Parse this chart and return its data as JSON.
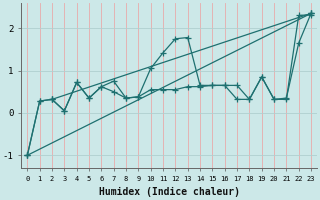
{
  "xlabel": "Humidex (Indice chaleur)",
  "ylabel": "",
  "bg_color": "#cce8e8",
  "line_color": "#1e7070",
  "hgrid_color": "#b0d0d0",
  "vgrid_color": "#e8aaaa",
  "xlim": [
    -0.5,
    23.5
  ],
  "ylim": [
    -1.3,
    2.6
  ],
  "yticks": [
    -1,
    0,
    1,
    2
  ],
  "lines": [
    {
      "x": [
        0,
        1,
        2,
        3,
        4,
        5,
        6,
        7,
        8,
        9,
        10,
        11,
        12,
        13,
        14,
        15,
        16,
        17,
        18,
        19,
        20,
        21,
        22,
        23
      ],
      "y": [
        -1.0,
        0.28,
        0.32,
        0.05,
        0.72,
        0.35,
        0.62,
        0.75,
        0.35,
        0.38,
        1.05,
        1.42,
        1.75,
        1.78,
        0.65,
        0.65,
        0.65,
        0.32,
        0.32,
        0.85,
        0.32,
        0.32,
        2.3,
        2.32
      ]
    },
    {
      "x": [
        0,
        1,
        2,
        3,
        4,
        5,
        6,
        7,
        8,
        9,
        10,
        11,
        12,
        13,
        14,
        15,
        16,
        17,
        18,
        19,
        20,
        21,
        22,
        23
      ],
      "y": [
        -1.0,
        0.28,
        0.32,
        0.05,
        0.72,
        0.35,
        0.62,
        0.5,
        0.35,
        0.38,
        0.55,
        0.55,
        0.55,
        0.62,
        0.62,
        0.65,
        0.65,
        0.65,
        0.32,
        0.85,
        0.32,
        0.35,
        1.65,
        2.35
      ]
    },
    {
      "x": [
        0,
        23
      ],
      "y": [
        -1.0,
        2.35
      ]
    },
    {
      "x": [
        2,
        23
      ],
      "y": [
        0.32,
        2.35
      ]
    }
  ]
}
